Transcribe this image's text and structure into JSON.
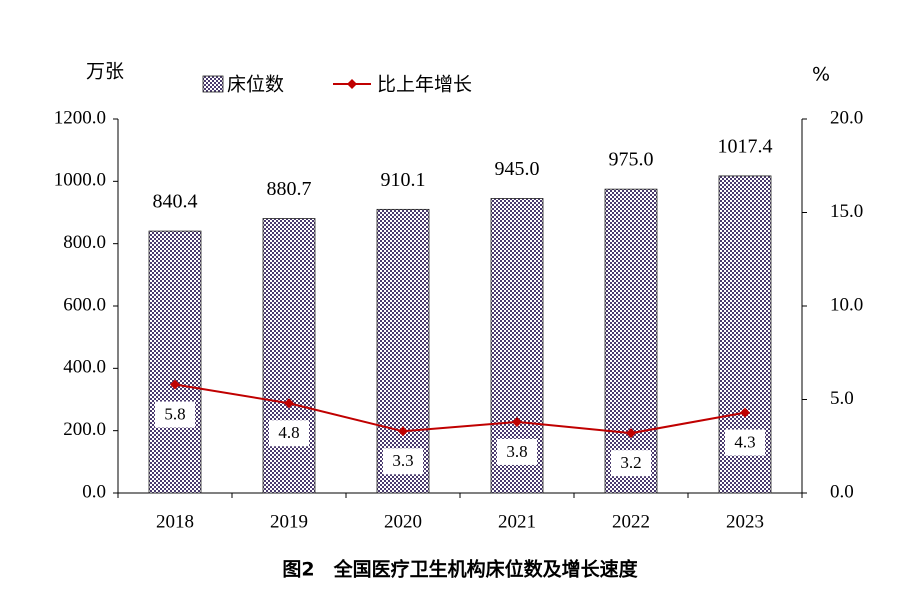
{
  "chart_data": {
    "type": "bar",
    "title": "图2　全国医疗卫生机构床位数及增长速度",
    "y_label": "万张",
    "y2_label": "%",
    "categories": [
      "2018",
      "2019",
      "2020",
      "2021",
      "2022",
      "2023"
    ],
    "series": [
      {
        "name": "床位数",
        "type": "bar",
        "color": "#4a3a6e",
        "values": [
          840.4,
          880.7,
          910.1,
          945,
          975,
          1017.4
        ],
        "value_labels": [
          "840.4",
          "880.7",
          "910.1",
          "945.0",
          "975.0",
          "1017.4"
        ]
      },
      {
        "name": "比上年增长",
        "type": "line",
        "axis": "y2",
        "color": "#c00000",
        "values": [
          5.8,
          4.8,
          3.3,
          3.8,
          3.2,
          4.3
        ]
      }
    ],
    "ylim": [
      0,
      1200
    ],
    "yticks": [
      {
        "value": 0,
        "label": "0.0"
      },
      {
        "value": 200,
        "label": "200.0"
      },
      {
        "value": 400,
        "label": "400.0"
      },
      {
        "value": 600,
        "label": "600.0"
      },
      {
        "value": 800,
        "label": "800.0"
      },
      {
        "value": 1000,
        "label": "1000.0"
      },
      {
        "value": 1200,
        "label": "1200.0"
      }
    ],
    "y2lim": [
      0,
      20
    ],
    "y2ticks": [
      {
        "value": 0,
        "label": "0.0"
      },
      {
        "value": 5,
        "label": "5.0"
      },
      {
        "value": 10,
        "label": "10.0"
      },
      {
        "value": 15,
        "label": "15.0"
      },
      {
        "value": 20,
        "label": "20.0"
      }
    ]
  }
}
